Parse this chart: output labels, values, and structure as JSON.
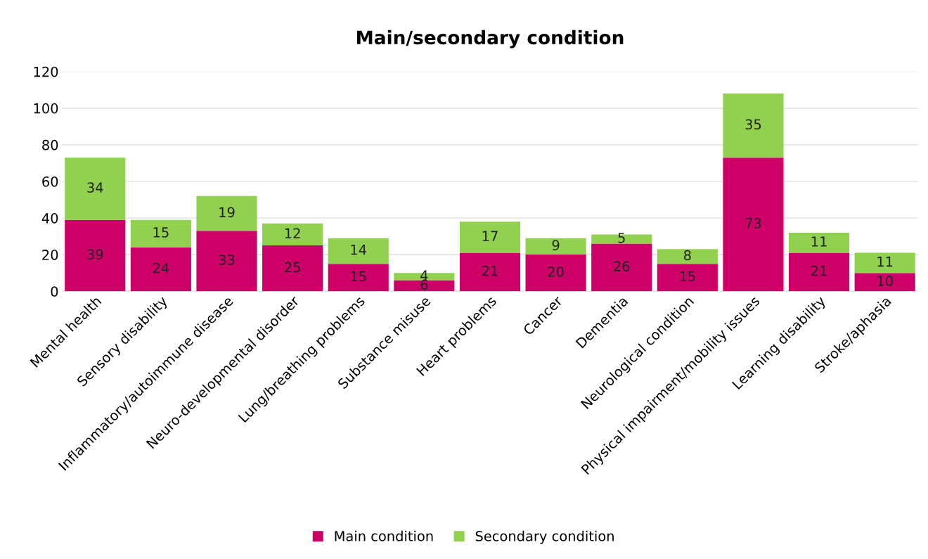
{
  "chart_data": {
    "type": "bar",
    "title": "Main/secondary condition",
    "stacked": true,
    "data_labels": true,
    "grid": "y",
    "legend": "bottom",
    "categories": [
      "Mental health",
      "Sensory disability",
      "Inflammatory/autoimmune disease",
      "Neuro-developmental disorder",
      "Lung/breathing problems",
      "Substance misuse",
      "Heart problems",
      "Cancer",
      "Dementia",
      "Neurological condition",
      "Physical impairment/mobility issues",
      "Learning disability",
      "Stroke/aphasia"
    ],
    "series": [
      {
        "name": "Main condition",
        "color": "#cc0066",
        "values": [
          39,
          24,
          33,
          25,
          15,
          6,
          21,
          20,
          26,
          15,
          73,
          21,
          10
        ]
      },
      {
        "name": "Secondary condition",
        "color": "#92d050",
        "values": [
          34,
          15,
          19,
          12,
          14,
          4,
          17,
          9,
          5,
          8,
          35,
          11,
          11
        ]
      }
    ],
    "ylim": [
      0,
      120
    ],
    "yticks": [
      0,
      20,
      40,
      60,
      80,
      100,
      120
    ]
  }
}
